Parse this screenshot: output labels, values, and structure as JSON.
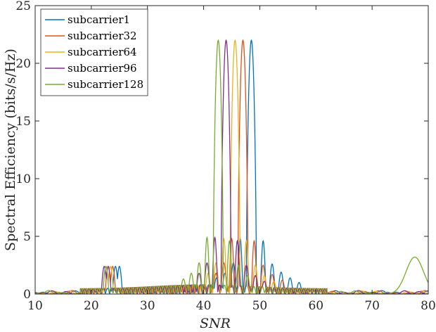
{
  "chart_data": {
    "type": "line",
    "title": "",
    "xlabel": "SNR",
    "ylabel": "Spectral Efficiency (bits/s/Hz)",
    "xlim": [
      10,
      80
    ],
    "ylim": [
      0,
      25
    ],
    "xticks": [
      "10",
      "20",
      "30",
      "40",
      "50",
      "60",
      "70",
      "80"
    ],
    "yticks": [
      "0",
      "5",
      "10",
      "15",
      "20",
      "25"
    ],
    "grid": false,
    "legend_position": "top-left",
    "series": [
      {
        "name": "subcarrier1",
        "color": "#0072BD",
        "main_peak": {
          "x": 48.5,
          "y": 22
        },
        "side_peaks": [
          {
            "x": 46.5,
            "y": 4.8
          },
          {
            "x": 50.6,
            "y": 4.6
          },
          {
            "x": 45.3,
            "y": 2.7
          },
          {
            "x": 52.2,
            "y": 2.6
          },
          {
            "x": 43.8,
            "y": 1.8
          },
          {
            "x": 53.8,
            "y": 1.9
          },
          {
            "x": 42.3,
            "y": 1.4
          },
          {
            "x": 55.4,
            "y": 1.4
          },
          {
            "x": 57.0,
            "y": 1.0
          },
          {
            "x": 25.0,
            "y": 2.4
          },
          {
            "x": 24.3,
            "y": 2.4
          }
        ],
        "floor": 0.3
      },
      {
        "name": "subcarrier32",
        "color": "#D95319",
        "main_peak": {
          "x": 47.0,
          "y": 22
        },
        "side_peaks": [
          {
            "x": 45.0,
            "y": 4.8
          },
          {
            "x": 49.0,
            "y": 4.6
          },
          {
            "x": 43.6,
            "y": 2.7
          },
          {
            "x": 50.6,
            "y": 2.5
          },
          {
            "x": 42.2,
            "y": 1.8
          },
          {
            "x": 52.2,
            "y": 1.7
          },
          {
            "x": 54.0,
            "y": 1.2
          },
          {
            "x": 23.8,
            "y": 2.4
          },
          {
            "x": 23.0,
            "y": 2.4
          }
        ],
        "floor": 0.3
      },
      {
        "name": "subcarrier64",
        "color": "#EDB120",
        "main_peak": {
          "x": 45.6,
          "y": 22
        },
        "side_peaks": [
          {
            "x": 43.6,
            "y": 4.8
          },
          {
            "x": 47.6,
            "y": 4.6
          },
          {
            "x": 42.2,
            "y": 2.7
          },
          {
            "x": 49.2,
            "y": 2.5
          },
          {
            "x": 40.8,
            "y": 1.8
          },
          {
            "x": 50.8,
            "y": 1.6
          },
          {
            "x": 52.5,
            "y": 1.1
          },
          {
            "x": 23.4,
            "y": 2.4
          },
          {
            "x": 22.6,
            "y": 2.4
          }
        ],
        "floor": 0.3
      },
      {
        "name": "subcarrier96",
        "color": "#7E2F8E",
        "main_peak": {
          "x": 44.0,
          "y": 22
        },
        "side_peaks": [
          {
            "x": 42.0,
            "y": 4.9
          },
          {
            "x": 46.0,
            "y": 4.6
          },
          {
            "x": 40.6,
            "y": 2.7
          },
          {
            "x": 47.6,
            "y": 2.5
          },
          {
            "x": 39.2,
            "y": 1.8
          },
          {
            "x": 49.2,
            "y": 1.6
          },
          {
            "x": 50.8,
            "y": 1.1
          },
          {
            "x": 23.0,
            "y": 2.4
          },
          {
            "x": 22.3,
            "y": 2.4
          }
        ],
        "floor": 0.3
      },
      {
        "name": "subcarrier128",
        "color": "#77AC30",
        "main_peak": {
          "x": 42.6,
          "y": 22
        },
        "side_peaks": [
          {
            "x": 40.6,
            "y": 4.9
          },
          {
            "x": 44.6,
            "y": 4.6
          },
          {
            "x": 39.2,
            "y": 2.7
          },
          {
            "x": 46.2,
            "y": 2.5
          },
          {
            "x": 37.8,
            "y": 1.8
          },
          {
            "x": 47.8,
            "y": 1.6
          },
          {
            "x": 36.4,
            "y": 1.3
          },
          {
            "x": 22.6,
            "y": 2.4
          },
          {
            "x": 77.6,
            "y": 3.2
          }
        ],
        "floor": 0.3
      }
    ]
  }
}
